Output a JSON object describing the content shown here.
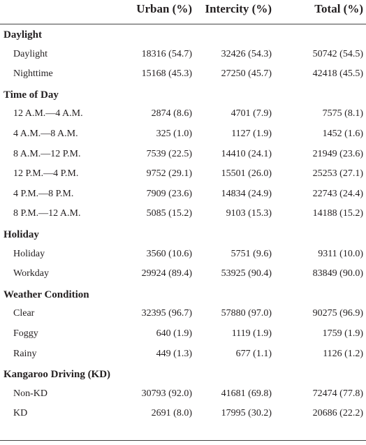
{
  "header": {
    "col_urban": "Urban (%)",
    "col_intercity": "Intercity (%)",
    "col_total": "Total (%)"
  },
  "sections": [
    {
      "title": "Daylight",
      "rows": [
        {
          "label": "Daylight",
          "urban": "18316 (54.7)",
          "intercity": "32426 (54.3)",
          "total": "50742 (54.5)"
        },
        {
          "label": "Nighttime",
          "urban": "15168 (45.3)",
          "intercity": "27250 (45.7)",
          "total": "42418 (45.5)"
        }
      ]
    },
    {
      "title": "Time of Day",
      "rows": [
        {
          "label": "12 A.M.—4 A.M.",
          "urban": "2874 (8.6)",
          "intercity": "4701 (7.9)",
          "total": "7575 (8.1)"
        },
        {
          "label": "4 A.M.—8 A.M.",
          "urban": "325 (1.0)",
          "intercity": "1127 (1.9)",
          "total": "1452 (1.6)"
        },
        {
          "label": "8 A.M.—12 P.M.",
          "urban": "7539 (22.5)",
          "intercity": "14410 (24.1)",
          "total": "21949 (23.6)"
        },
        {
          "label": "12 P.M.—4 P.M.",
          "urban": "9752 (29.1)",
          "intercity": "15501 (26.0)",
          "total": "25253 (27.1)"
        },
        {
          "label": "4 P.M.—8 P.M.",
          "urban": "7909 (23.6)",
          "intercity": "14834 (24.9)",
          "total": "22743 (24.4)"
        },
        {
          "label": "8 P.M.—12 A.M.",
          "urban": "5085 (15.2)",
          "intercity": "9103 (15.3)",
          "total": "14188 (15.2)"
        }
      ]
    },
    {
      "title": "Holiday",
      "rows": [
        {
          "label": "Holiday",
          "urban": "3560 (10.6)",
          "intercity": "5751 (9.6)",
          "total": "9311 (10.0)"
        },
        {
          "label": "Workday",
          "urban": "29924 (89.4)",
          "intercity": "53925 (90.4)",
          "total": "83849 (90.0)"
        }
      ]
    },
    {
      "title": "Weather Condition",
      "rows": [
        {
          "label": "Clear",
          "urban": "32395 (96.7)",
          "intercity": "57880 (97.0)",
          "total": "90275 (96.9)"
        },
        {
          "label": "Foggy",
          "urban": "640 (1.9)",
          "intercity": "1119 (1.9)",
          "total": "1759 (1.9)"
        },
        {
          "label": "Rainy",
          "urban": "449 (1.3)",
          "intercity": "677 (1.1)",
          "total": "1126 (1.2)"
        }
      ]
    },
    {
      "title": "Kangaroo Driving (KD)",
      "rows": [
        {
          "label": "Non-KD",
          "urban": "30793 (92.0)",
          "intercity": "41681 (69.8)",
          "total": "72474 (77.8)"
        },
        {
          "label": "KD",
          "urban": "2691 (8.0)",
          "intercity": "17995 (30.2)",
          "total": "20686 (22.2)"
        }
      ]
    }
  ]
}
